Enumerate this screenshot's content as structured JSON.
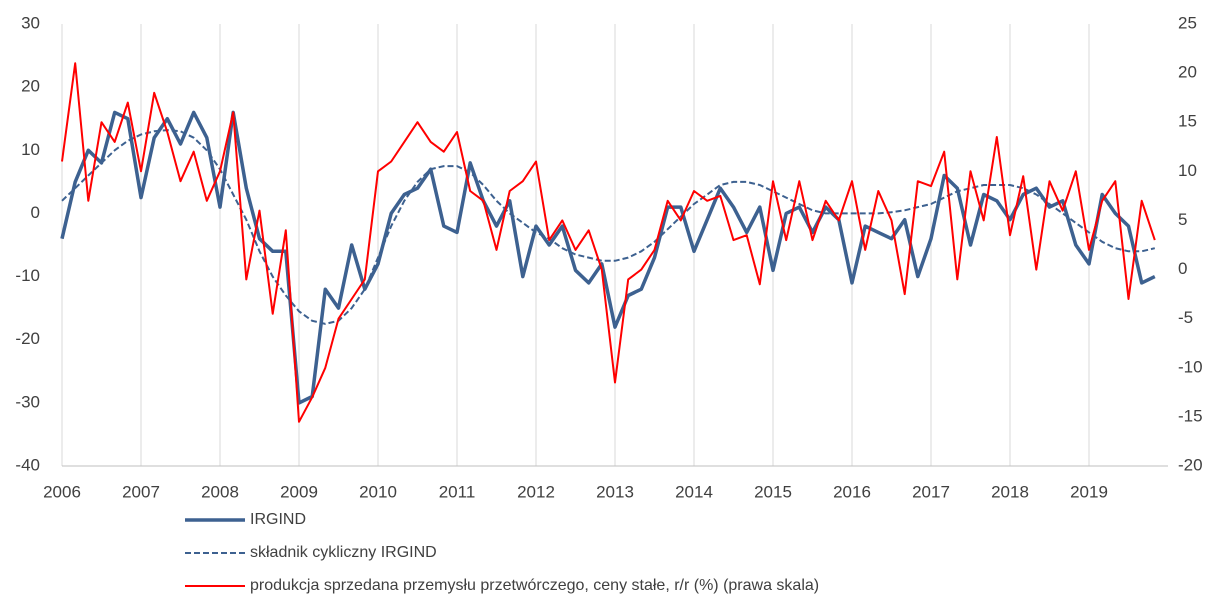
{
  "chart_data": {
    "type": "line",
    "x": [
      2006,
      2006.167,
      2006.333,
      2006.5,
      2006.667,
      2006.833,
      2007,
      2007.167,
      2007.333,
      2007.5,
      2007.667,
      2007.833,
      2008,
      2008.167,
      2008.333,
      2008.5,
      2008.667,
      2008.833,
      2009,
      2009.167,
      2009.333,
      2009.5,
      2009.667,
      2009.833,
      2010,
      2010.167,
      2010.333,
      2010.5,
      2010.667,
      2010.833,
      2011,
      2011.167,
      2011.333,
      2011.5,
      2011.667,
      2011.833,
      2012,
      2012.167,
      2012.333,
      2012.5,
      2012.667,
      2012.833,
      2013,
      2013.167,
      2013.333,
      2013.5,
      2013.667,
      2013.833,
      2014,
      2014.167,
      2014.333,
      2014.5,
      2014.667,
      2014.833,
      2015,
      2015.167,
      2015.333,
      2015.5,
      2015.667,
      2015.833,
      2016,
      2016.167,
      2016.333,
      2016.5,
      2016.667,
      2016.833,
      2017,
      2017.167,
      2017.333,
      2017.5,
      2017.667,
      2017.833,
      2018,
      2018.167,
      2018.333,
      2018.5,
      2018.667,
      2018.833,
      2019,
      2019.167,
      2019.333,
      2019.5,
      2019.667,
      2019.833
    ],
    "xlim": [
      2006,
      2020
    ],
    "xticks": [
      2006,
      2007,
      2008,
      2009,
      2010,
      2011,
      2012,
      2013,
      2014,
      2015,
      2016,
      2017,
      2018,
      2019
    ],
    "ylim": [
      -40,
      30
    ],
    "yticks": [
      -40,
      -30,
      -20,
      -10,
      0,
      10,
      20,
      30
    ],
    "y2lim": [
      -20,
      25
    ],
    "y2ticks": [
      -20,
      -15,
      -10,
      -5,
      0,
      5,
      10,
      15,
      20,
      25
    ],
    "grid": true,
    "series": [
      {
        "name": "IRGIND",
        "color": "#3d6190",
        "style": "solid",
        "values": [
          -4,
          5,
          10,
          8,
          16,
          15,
          2.5,
          12,
          15,
          11,
          16,
          12,
          1,
          16,
          4,
          -4,
          -6,
          -6,
          -30,
          -29,
          -12,
          -15,
          -5,
          -12,
          -8,
          0,
          3,
          4,
          7,
          -2,
          -3,
          8,
          2,
          -2,
          2,
          -10,
          -2,
          -5,
          -2,
          -9,
          -11,
          -8,
          -18,
          -13,
          -12,
          -7,
          1,
          1,
          -6,
          -1,
          4,
          1,
          -3,
          1,
          -9,
          0,
          1,
          -3,
          1,
          -1,
          -11,
          -2,
          -3,
          -4,
          -1,
          -10,
          -4,
          6,
          4,
          -5,
          3,
          2,
          -1,
          3,
          4,
          1,
          2,
          -5,
          -8,
          3,
          0,
          -2,
          -11,
          -10
        ]
      },
      {
        "name": "składnik cykliczny IRGIND",
        "color": "#3d6190",
        "style": "dashed",
        "values": [
          2,
          4,
          6,
          8,
          10,
          11.5,
          12.5,
          13,
          13.2,
          13,
          12,
          10,
          7,
          3,
          -1,
          -6,
          -10,
          -13,
          -15.5,
          -17,
          -17.5,
          -17,
          -15,
          -12,
          -7,
          -2,
          2,
          5,
          7,
          7.5,
          7.5,
          6.5,
          4.5,
          2,
          0,
          -1.5,
          -3,
          -4,
          -5.5,
          -6.5,
          -7,
          -7.5,
          -7.5,
          -7,
          -6,
          -4.5,
          -2.5,
          -0.5,
          1.5,
          3,
          4.5,
          5,
          5,
          4.5,
          3.5,
          2.5,
          1.5,
          0.5,
          0,
          0,
          0,
          0,
          0,
          0.2,
          0.5,
          1,
          1.5,
          2.5,
          3.5,
          4,
          4.5,
          4.5,
          4.5,
          4,
          3,
          1.5,
          0,
          -1.5,
          -3,
          -4.5,
          -5.5,
          -6,
          -6,
          -5.5
        ]
      },
      {
        "name": "produkcja sprzedana przemysłu przetwórczego, ceny stałe, r/r (%) (prawa skala)",
        "color": "#ff0000",
        "style": "solid",
        "axis": "y2",
        "values": [
          11,
          21,
          7,
          15,
          13,
          17,
          10,
          18,
          14,
          9,
          12,
          7,
          10,
          16,
          -1,
          6,
          -4.5,
          4,
          -15.5,
          -13,
          -10,
          -5,
          -3,
          -1,
          10,
          11,
          13,
          15,
          13,
          12,
          14,
          8,
          7,
          2,
          8,
          9,
          11,
          3,
          5,
          2,
          4,
          0,
          -11.5,
          -1,
          0,
          2,
          7,
          5,
          8,
          7,
          7.5,
          3,
          3.5,
          -1.5,
          9,
          3,
          9,
          3,
          7,
          5,
          9,
          2,
          8,
          5,
          -2.5,
          9,
          8.5,
          12,
          -1,
          10,
          5,
          13.5,
          3.5,
          9.5,
          0,
          9,
          6,
          10,
          2,
          7,
          9,
          -3,
          7,
          3
        ]
      }
    ]
  }
}
